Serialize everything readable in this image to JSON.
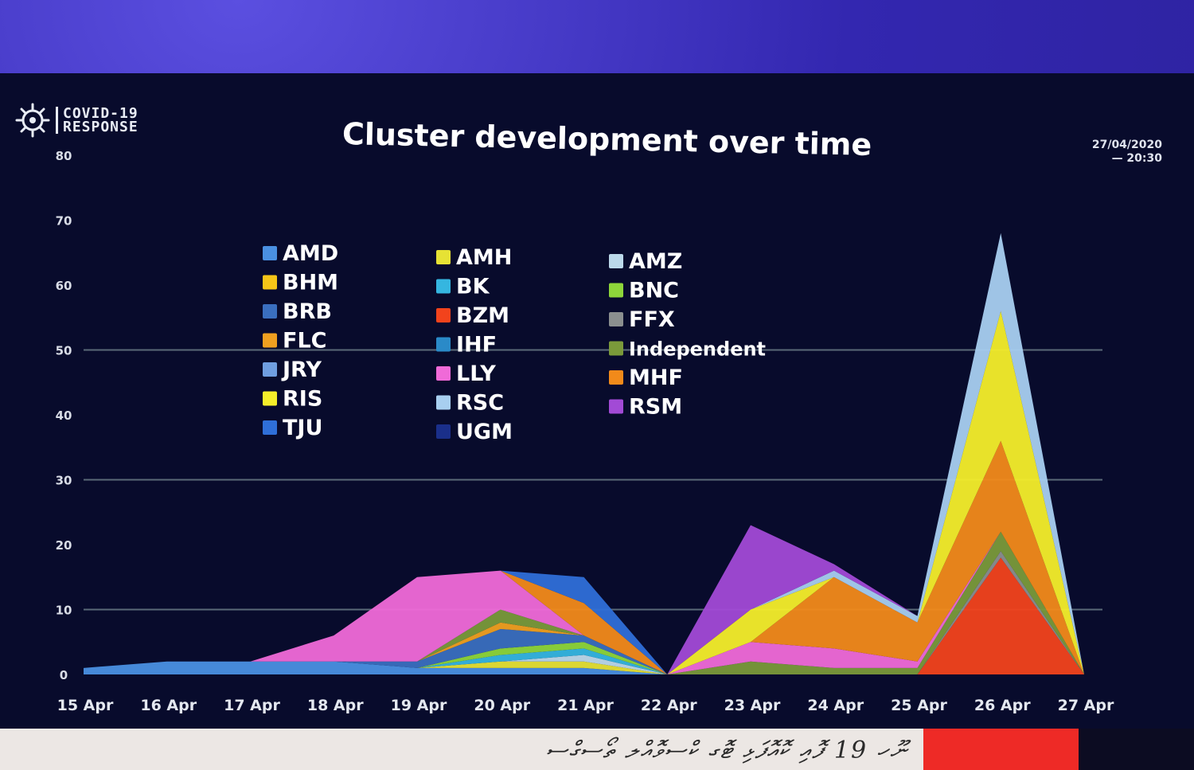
{
  "logo": {
    "line1": "COVID-19",
    "line2": "RESPONSE"
  },
  "timestamp": {
    "date": "27/04/2020",
    "time": "— 20:30"
  },
  "footer": {
    "caption_text": "ނޫހ 19 ފޮއި ކޮއޮފަޅި ޓޮގ ކްސވޮއްލ ތޯސގްސ"
  },
  "chart_data": {
    "type": "area",
    "title": "Cluster development over time",
    "xlabel": "",
    "ylabel": "",
    "ylim": [
      0,
      80
    ],
    "yticks": [
      0,
      10,
      20,
      30,
      40,
      50,
      60,
      70,
      80
    ],
    "gridlines": [
      10,
      30,
      50
    ],
    "legend_position": "top-left",
    "x": [
      "15 Apr",
      "16 Apr",
      "17 Apr",
      "18 Apr",
      "19 Apr",
      "20 Apr",
      "21 Apr",
      "22 Apr",
      "23 Apr",
      "24 Apr",
      "25 Apr",
      "26 Apr",
      "27 Apr"
    ],
    "series": [
      {
        "name": "AMD",
        "color": "#4a90e2",
        "values": [
          1,
          2,
          2,
          2,
          1,
          1,
          1,
          0,
          0,
          0,
          0,
          0,
          0
        ]
      },
      {
        "name": "AMH",
        "color": "#e6e234",
        "values": [
          0,
          0,
          0,
          0,
          0,
          1,
          1,
          0,
          0,
          0,
          0,
          0,
          0
        ]
      },
      {
        "name": "AMZ",
        "color": "#bcd9ea",
        "values": [
          0,
          0,
          0,
          0,
          0,
          0,
          1,
          0,
          0,
          0,
          0,
          0,
          0
        ]
      },
      {
        "name": "BHM",
        "color": "#f5c518",
        "values": [
          0,
          0,
          0,
          0,
          0,
          0,
          0,
          0,
          0,
          0,
          0,
          0,
          0
        ]
      },
      {
        "name": "BK",
        "color": "#35b6e0",
        "values": [
          0,
          0,
          0,
          0,
          0,
          1,
          1,
          0,
          0,
          0,
          0,
          0,
          0
        ]
      },
      {
        "name": "BNC",
        "color": "#8ed63a",
        "values": [
          0,
          0,
          0,
          0,
          0,
          1,
          1,
          0,
          0,
          0,
          0,
          0,
          0
        ]
      },
      {
        "name": "BRB",
        "color": "#3a6fbf",
        "values": [
          0,
          0,
          0,
          0,
          1,
          3,
          1,
          0,
          0,
          0,
          0,
          0,
          0
        ]
      },
      {
        "name": "BZM",
        "color": "#f2431c",
        "values": [
          0,
          0,
          0,
          0,
          0,
          0,
          0,
          0,
          0,
          0,
          0,
          18,
          0
        ]
      },
      {
        "name": "FFX",
        "color": "#8b8f8f",
        "values": [
          0,
          0,
          0,
          0,
          0,
          0,
          0,
          0,
          0,
          0,
          0,
          1,
          0
        ]
      },
      {
        "name": "FLC",
        "color": "#f0a020",
        "values": [
          0,
          0,
          0,
          0,
          0,
          1,
          0,
          0,
          0,
          0,
          0,
          0,
          0
        ]
      },
      {
        "name": "IHF",
        "color": "#2a8ac8",
        "values": [
          0,
          0,
          0,
          0,
          0,
          0,
          0,
          0,
          0,
          0,
          0,
          0,
          0
        ]
      },
      {
        "name": "Independent",
        "color": "#7a9a3a",
        "values": [
          0,
          0,
          0,
          0,
          0,
          2,
          0,
          0,
          2,
          1,
          1,
          3,
          0
        ]
      },
      {
        "name": "JRY",
        "color": "#6f9ee0",
        "values": [
          0,
          0,
          0,
          0,
          0,
          0,
          0,
          0,
          0,
          0,
          0,
          0,
          0
        ]
      },
      {
        "name": "LLY",
        "color": "#f06ad8",
        "values": [
          0,
          0,
          0,
          4,
          13,
          6,
          0,
          0,
          3,
          3,
          1,
          0,
          0
        ]
      },
      {
        "name": "MHF",
        "color": "#f28a1a",
        "values": [
          0,
          0,
          0,
          0,
          0,
          0,
          5,
          0,
          0,
          11,
          6,
          14,
          0
        ]
      },
      {
        "name": "RIS",
        "color": "#f4ee2a",
        "values": [
          0,
          0,
          0,
          0,
          0,
          0,
          0,
          0,
          5,
          0,
          0,
          20,
          0
        ]
      },
      {
        "name": "RSC",
        "color": "#a8cff0",
        "values": [
          0,
          0,
          0,
          0,
          0,
          0,
          0,
          0,
          0,
          1,
          1,
          12,
          0
        ]
      },
      {
        "name": "RSM",
        "color": "#a24ad6",
        "values": [
          0,
          0,
          0,
          0,
          0,
          0,
          0,
          0,
          13,
          1,
          0,
          0,
          0
        ]
      },
      {
        "name": "TJU",
        "color": "#2f6fd8",
        "values": [
          0,
          0,
          0,
          0,
          0,
          0,
          4,
          0,
          0,
          0,
          0,
          0,
          0
        ]
      },
      {
        "name": "UGM",
        "color": "#1a2f8a",
        "values": [
          0,
          0,
          0,
          0,
          0,
          0,
          0,
          0,
          0,
          0,
          0,
          0,
          0
        ]
      }
    ]
  }
}
